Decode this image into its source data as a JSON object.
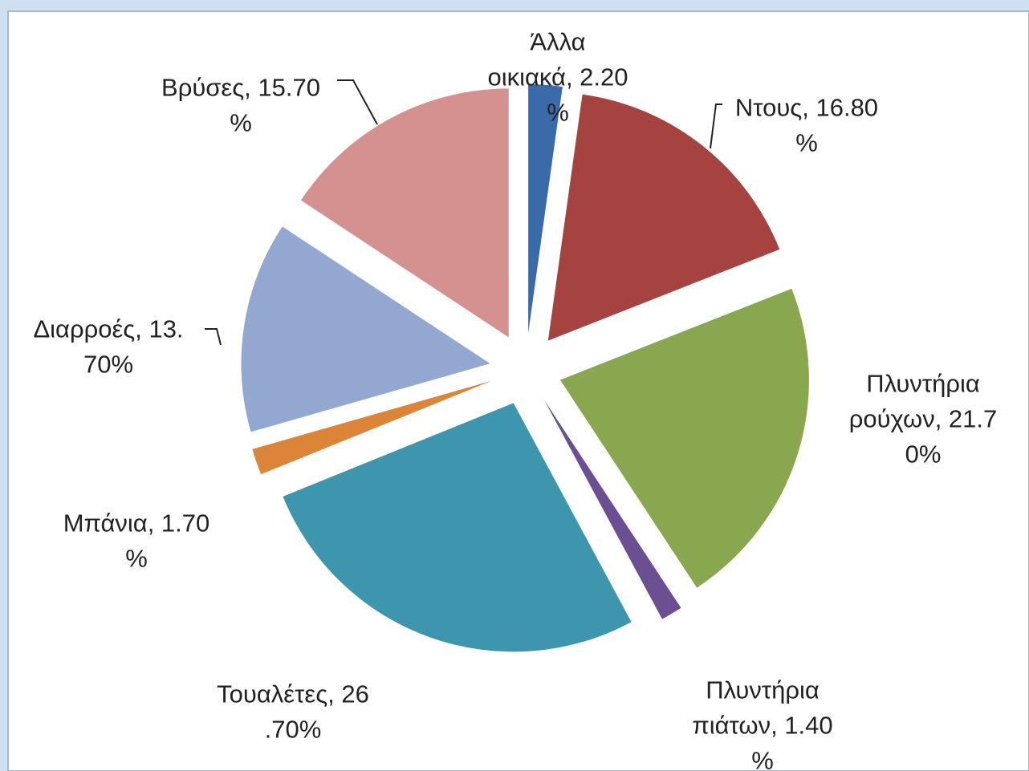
{
  "chart_data": {
    "type": "pie",
    "values": [
      2.2,
      16.8,
      21.7,
      1.4,
      26.7,
      1.7,
      13.7,
      15.7
    ],
    "value_labels": [
      "Άλλα οικιακά, 2.20%",
      "Ντους, 16.80%",
      "Πλυντήρια ρούχων, 21.70%",
      "Πλυντήρια πιάτων, 1.40%",
      "Τουαλέτες, 26.70%",
      "Μπάνια, 1.70%",
      "Διαρροές, 13.70%",
      "Βρύσες, 15.70%"
    ],
    "colors": [
      "#3a6aa8",
      "#a54341",
      "#88a74e",
      "#6c4f92",
      "#3d96ae",
      "#dc8438",
      "#93a8d0",
      "#d49190"
    ]
  }
}
